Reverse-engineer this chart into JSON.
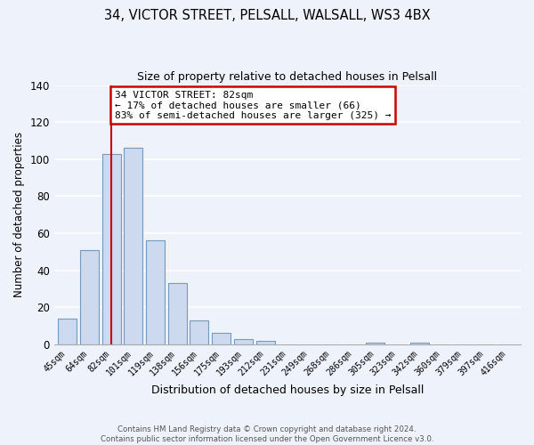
{
  "title": "34, VICTOR STREET, PELSALL, WALSALL, WS3 4BX",
  "subtitle": "Size of property relative to detached houses in Pelsall",
  "xlabel": "Distribution of detached houses by size in Pelsall",
  "ylabel": "Number of detached properties",
  "bin_labels": [
    "45sqm",
    "64sqm",
    "82sqm",
    "101sqm",
    "119sqm",
    "138sqm",
    "156sqm",
    "175sqm",
    "193sqm",
    "212sqm",
    "231sqm",
    "249sqm",
    "268sqm",
    "286sqm",
    "305sqm",
    "323sqm",
    "342sqm",
    "360sqm",
    "379sqm",
    "397sqm",
    "416sqm"
  ],
  "bar_values": [
    14,
    51,
    103,
    106,
    56,
    33,
    13,
    6,
    3,
    2,
    0,
    0,
    0,
    0,
    1,
    0,
    1,
    0,
    0,
    0,
    0
  ],
  "bar_color": "#ccd9ee",
  "bar_edge_color": "#7799bb",
  "vline_x_index": 2,
  "vline_color": "#cc0000",
  "annotation_text": "34 VICTOR STREET: 82sqm\n← 17% of detached houses are smaller (66)\n83% of semi-detached houses are larger (325) →",
  "annotation_box_color": "#ffffff",
  "annotation_box_edge_color": "#cc0000",
  "ylim": [
    0,
    140
  ],
  "yticks": [
    0,
    20,
    40,
    60,
    80,
    100,
    120,
    140
  ],
  "footer_text": "Contains HM Land Registry data © Crown copyright and database right 2024.\nContains public sector information licensed under the Open Government Licence v3.0.",
  "background_color": "#eef2fa"
}
